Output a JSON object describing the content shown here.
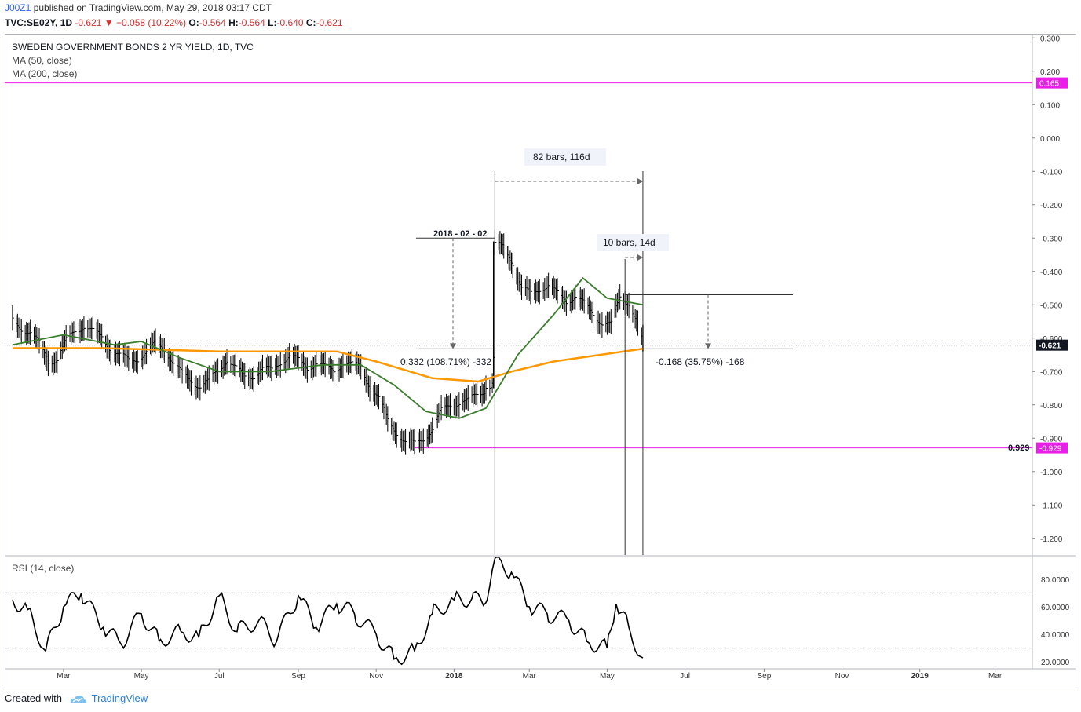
{
  "header": {
    "user": "J00Z1",
    "published": " published on TradingView.com, May 29, 2018 03:17 CDT",
    "symbol": "TVC:SE02Y, 1D",
    "last": "-0.621",
    "change": "−0.058 (10.22%)",
    "o_label": "O:",
    "o": "-0.564",
    "h_label": "H:",
    "h": "-0.564",
    "l_label": "L:",
    "l": "-0.640",
    "c_label": "C:",
    "c": "-0.621"
  },
  "legend": {
    "title": "SWEDEN GOVERNMENT BONDS 2 YR YIELD, 1D, TVC",
    "ma50": "MA (50, close)",
    "ma200": "MA (200, close)",
    "rsi": "RSI (14, close)"
  },
  "footer": {
    "created": "Created with",
    "brand": "TradingView"
  },
  "colors": {
    "ma50": "#3a7d2c",
    "ma200": "#ff9800",
    "level": "#e91ee8",
    "price_badge": "#131722",
    "rsi": "#000000",
    "down": "#d32f2f"
  },
  "chart_data": [
    {
      "type": "ohlc",
      "title": "SWEDEN GOVERNMENT BONDS 2 YR YIELD, 1D, TVC",
      "x_ticks": [
        "Mar",
        "May",
        "Jul",
        "Sep",
        "Nov",
        "2018",
        "Mar",
        "May",
        "Jul",
        "Sep",
        "Nov",
        "2019",
        "Mar"
      ],
      "x_ticks_bold": [
        "2018",
        "2019"
      ],
      "y_ticks": [
        "0.300",
        "0.200",
        "0.100",
        "0.000",
        "-0.100",
        "-0.200",
        "-0.300",
        "-0.400",
        "-0.500",
        "-0.600",
        "-0.700",
        "-0.800",
        "-0.900",
        "-1.000",
        "-1.100",
        "-1.200"
      ],
      "ylim": [
        -1.25,
        0.31
      ],
      "series_close": [
        [
          "2017-01-20",
          -0.55
        ],
        [
          "2017-01-27",
          -0.57
        ],
        [
          "2017-02-03",
          -0.58
        ],
        [
          "2017-02-10",
          -0.62
        ],
        [
          "2017-02-17",
          -0.67
        ],
        [
          "2017-02-24",
          -0.66
        ],
        [
          "2017-03-03",
          -0.61
        ],
        [
          "2017-03-10",
          -0.58
        ],
        [
          "2017-03-17",
          -0.56
        ],
        [
          "2017-03-24",
          -0.58
        ],
        [
          "2017-03-31",
          -0.6
        ],
        [
          "2017-04-07",
          -0.63
        ],
        [
          "2017-04-14",
          -0.65
        ],
        [
          "2017-04-21",
          -0.67
        ],
        [
          "2017-04-28",
          -0.66
        ],
        [
          "2017-05-05",
          -0.64
        ],
        [
          "2017-05-12",
          -0.62
        ],
        [
          "2017-05-19",
          -0.63
        ],
        [
          "2017-05-26",
          -0.67
        ],
        [
          "2017-06-02",
          -0.71
        ],
        [
          "2017-06-09",
          -0.73
        ],
        [
          "2017-06-16",
          -0.74
        ],
        [
          "2017-06-23",
          -0.73
        ],
        [
          "2017-06-30",
          -0.7
        ],
        [
          "2017-07-07",
          -0.66
        ],
        [
          "2017-07-14",
          -0.69
        ],
        [
          "2017-07-21",
          -0.72
        ],
        [
          "2017-07-28",
          -0.71
        ],
        [
          "2017-08-04",
          -0.69
        ],
        [
          "2017-08-11",
          -0.7
        ],
        [
          "2017-08-18",
          -0.67
        ],
        [
          "2017-08-25",
          -0.65
        ],
        [
          "2017-09-01",
          -0.67
        ],
        [
          "2017-09-08",
          -0.69
        ],
        [
          "2017-09-15",
          -0.67
        ],
        [
          "2017-09-22",
          -0.69
        ],
        [
          "2017-09-29",
          -0.7
        ],
        [
          "2017-10-06",
          -0.67
        ],
        [
          "2017-10-13",
          -0.68
        ],
        [
          "2017-10-20",
          -0.69
        ],
        [
          "2017-10-27",
          -0.74
        ],
        [
          "2017-11-03",
          -0.78
        ],
        [
          "2017-11-10",
          -0.85
        ],
        [
          "2017-11-17",
          -0.88
        ],
        [
          "2017-11-24",
          -0.91
        ],
        [
          "2017-12-01",
          -0.92
        ],
        [
          "2017-12-08",
          -0.9
        ],
        [
          "2017-12-15",
          -0.87
        ],
        [
          "2017-12-22",
          -0.82
        ],
        [
          "2017-12-29",
          -0.8
        ],
        [
          "2018-01-05",
          -0.79
        ],
        [
          "2018-01-12",
          -0.79
        ],
        [
          "2018-01-19",
          -0.77
        ],
        [
          "2018-01-26",
          -0.75
        ],
        [
          "2018-02-02",
          -0.32
        ],
        [
          "2018-02-09",
          -0.33
        ],
        [
          "2018-02-16",
          -0.37
        ],
        [
          "2018-02-23",
          -0.45
        ],
        [
          "2018-03-02",
          -0.47
        ],
        [
          "2018-03-09",
          -0.45
        ],
        [
          "2018-03-16",
          -0.44
        ],
        [
          "2018-03-23",
          -0.47
        ],
        [
          "2018-03-30",
          -0.49
        ],
        [
          "2018-04-06",
          -0.47
        ],
        [
          "2018-04-13",
          -0.5
        ],
        [
          "2018-04-20",
          -0.53
        ],
        [
          "2018-04-27",
          -0.55
        ],
        [
          "2018-05-04",
          -0.56
        ],
        [
          "2018-05-11",
          -0.48
        ],
        [
          "2018-05-18",
          -0.49
        ],
        [
          "2018-05-25",
          -0.56
        ],
        [
          "2018-05-29",
          -0.621
        ]
      ],
      "ma50": [
        [
          "2017-01-20",
          -0.62
        ],
        [
          "2017-03-01",
          -0.59
        ],
        [
          "2017-04-10",
          -0.62
        ],
        [
          "2017-05-01",
          -0.61
        ],
        [
          "2017-06-01",
          -0.66
        ],
        [
          "2017-07-01",
          -0.7
        ],
        [
          "2017-08-10",
          -0.7
        ],
        [
          "2017-09-20",
          -0.68
        ],
        [
          "2017-10-20",
          -0.68
        ],
        [
          "2017-11-15",
          -0.74
        ],
        [
          "2017-12-10",
          -0.82
        ],
        [
          "2018-01-05",
          -0.84
        ],
        [
          "2018-01-26",
          -0.81
        ],
        [
          "2018-02-20",
          -0.65
        ],
        [
          "2018-03-20",
          -0.53
        ],
        [
          "2018-04-12",
          -0.42
        ],
        [
          "2018-05-01",
          -0.48
        ],
        [
          "2018-05-29",
          -0.5
        ]
      ],
      "ma200": [
        [
          "2017-01-20",
          -0.63
        ],
        [
          "2017-04-01",
          -0.63
        ],
        [
          "2017-07-01",
          -0.64
        ],
        [
          "2017-10-01",
          -0.64
        ],
        [
          "2017-11-01",
          -0.67
        ],
        [
          "2017-12-15",
          -0.72
        ],
        [
          "2018-01-20",
          -0.73
        ],
        [
          "2018-02-15",
          -0.7
        ],
        [
          "2018-03-20",
          -0.67
        ],
        [
          "2018-05-29",
          -0.632
        ]
      ],
      "levels": [
        {
          "value": 0.165,
          "label": "0.165"
        },
        {
          "value": -0.929,
          "label": "-0.929"
        }
      ],
      "current_price": {
        "value": -0.621,
        "label": "-0.621"
      },
      "annotations": {
        "bars_range_1": "82 bars, 116d",
        "bars_range_2": "10 bars, 14d",
        "date_label": "2018 - 02 - 02",
        "price_change_1": "0.332 (108.71%) -332",
        "price_change_2": "-0.168 (35.75%) -168",
        "low_label": "0.929"
      }
    },
    {
      "type": "line",
      "title": "RSI (14, close)",
      "y_ticks": [
        "80.0000",
        "60.0000",
        "40.0000",
        "20.0000"
      ],
      "ylim": [
        15,
        97
      ],
      "bands": [
        70,
        30
      ],
      "values": [
        [
          "2017-01-20",
          65
        ],
        [
          "2017-02-01",
          58
        ],
        [
          "2017-02-15",
          28
        ],
        [
          "2017-03-01",
          60
        ],
        [
          "2017-03-15",
          70
        ],
        [
          "2017-04-01",
          45
        ],
        [
          "2017-04-15",
          33
        ],
        [
          "2017-05-01",
          55
        ],
        [
          "2017-05-15",
          35
        ],
        [
          "2017-06-01",
          42
        ],
        [
          "2017-06-15",
          38
        ],
        [
          "2017-07-01",
          68
        ],
        [
          "2017-07-15",
          42
        ],
        [
          "2017-08-01",
          50
        ],
        [
          "2017-08-15",
          35
        ],
        [
          "2017-09-01",
          68
        ],
        [
          "2017-09-15",
          45
        ],
        [
          "2017-10-01",
          62
        ],
        [
          "2017-10-15",
          55
        ],
        [
          "2017-11-01",
          40
        ],
        [
          "2017-11-15",
          22
        ],
        [
          "2017-12-01",
          28
        ],
        [
          "2017-12-15",
          55
        ],
        [
          "2018-01-01",
          65
        ],
        [
          "2018-01-15",
          66
        ],
        [
          "2018-01-26",
          63
        ],
        [
          "2018-02-02",
          95
        ],
        [
          "2018-02-15",
          85
        ],
        [
          "2018-03-01",
          60
        ],
        [
          "2018-03-15",
          55
        ],
        [
          "2018-04-01",
          50
        ],
        [
          "2018-04-15",
          35
        ],
        [
          "2018-05-01",
          30
        ],
        [
          "2018-05-08",
          62
        ],
        [
          "2018-05-18",
          45
        ],
        [
          "2018-05-29",
          23
        ]
      ]
    }
  ]
}
